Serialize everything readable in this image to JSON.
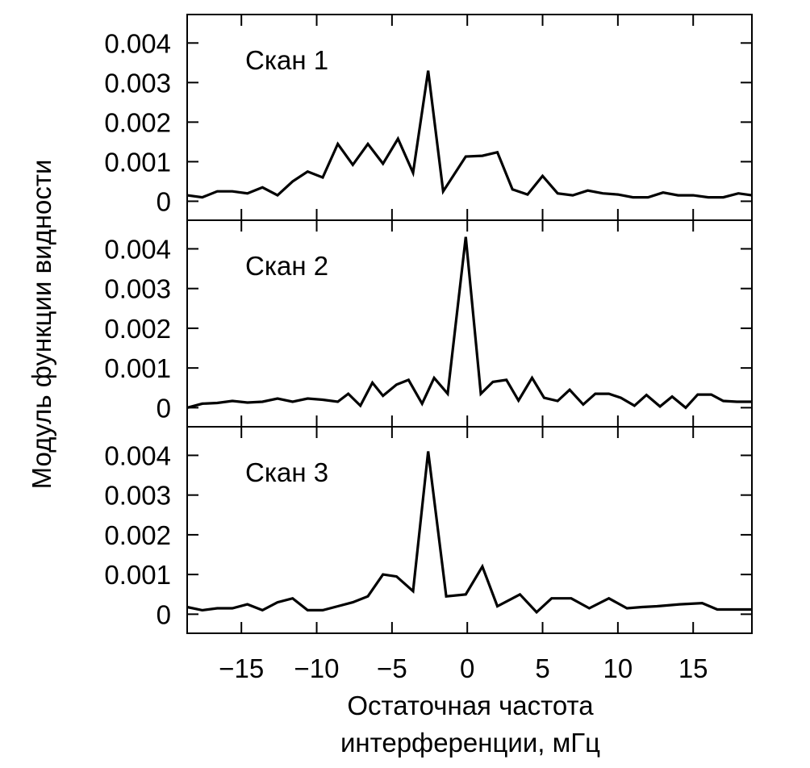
{
  "chart_data": [
    {
      "type": "line",
      "panel_label": "Скан 1",
      "xlabel": "Остаточная частота интерференции, мГц",
      "ylabel": "Модуль функции видности",
      "xlim": [
        -18.6,
        18.9
      ],
      "ylim": [
        -0.00048,
        0.00472
      ],
      "yticks": [
        0,
        0.001,
        0.002,
        0.003,
        0.004
      ],
      "ytick_labels": [
        "0",
        "0.001",
        "0.002",
        "0.003",
        "0.004"
      ],
      "x": [
        -18.6,
        -17.6,
        -16.6,
        -15.6,
        -14.6,
        -13.6,
        -12.6,
        -11.6,
        -10.6,
        -9.6,
        -8.6,
        -7.6,
        -6.6,
        -5.6,
        -4.6,
        -3.6,
        -2.6,
        -1.6,
        -0.1,
        1.0,
        2.0,
        3.0,
        4.0,
        5.0,
        6.0,
        7.0,
        8.0,
        9.0,
        10.0,
        11.0,
        12.0,
        13.0,
        14.0,
        15.0,
        16.0,
        17.0,
        18.0,
        18.9
      ],
      "y": [
        0.00015,
        0.0001,
        0.00025,
        0.00025,
        0.0002,
        0.00035,
        0.00015,
        0.0005,
        0.00075,
        0.0006,
        0.00145,
        0.00092,
        0.00145,
        0.00095,
        0.00158,
        0.00072,
        0.0033,
        0.00025,
        0.00113,
        0.00115,
        0.00124,
        0.0003,
        0.00017,
        0.00064,
        0.0002,
        0.00015,
        0.00027,
        0.0002,
        0.00017,
        0.0001,
        0.0001,
        0.00022,
        0.00015,
        0.00015,
        0.0001,
        0.0001,
        0.0002,
        0.00015
      ]
    },
    {
      "type": "line",
      "panel_label": "Скан 2",
      "xlim": [
        -18.6,
        18.9
      ],
      "ylim": [
        -0.00048,
        0.00472
      ],
      "yticks": [
        0,
        0.001,
        0.002,
        0.003,
        0.004
      ],
      "ytick_labels": [
        "0",
        "0.001",
        "0.002",
        "0.003",
        "0.004"
      ],
      "x": [
        -18.6,
        -17.6,
        -16.6,
        -15.6,
        -14.6,
        -13.6,
        -12.6,
        -11.6,
        -10.6,
        -9.6,
        -8.6,
        -7.9,
        -7.1,
        -6.3,
        -5.6,
        -4.7,
        -3.9,
        -3.0,
        -2.2,
        -1.3,
        -0.1,
        0.9,
        1.7,
        2.6,
        3.4,
        4.3,
        5.1,
        6.0,
        6.8,
        7.7,
        8.5,
        9.4,
        10.2,
        11.1,
        11.9,
        12.8,
        13.6,
        14.5,
        15.3,
        16.2,
        17.0,
        17.9,
        18.9
      ],
      "y": [
        0.0,
        0.0001,
        0.00012,
        0.00017,
        0.00013,
        0.00015,
        0.00023,
        0.00015,
        0.00023,
        0.0002,
        0.00015,
        0.00035,
        5e-05,
        0.00063,
        0.0003,
        0.00058,
        0.0007,
        0.0001,
        0.00075,
        0.00035,
        0.0043,
        0.00035,
        0.00065,
        0.0007,
        0.00018,
        0.00075,
        0.00025,
        0.00017,
        0.00045,
        8e-05,
        0.00035,
        0.00035,
        0.00025,
        5e-05,
        0.00032,
        3e-05,
        0.00028,
        0.0,
        0.00033,
        0.00033,
        0.00017,
        0.00015,
        0.00015
      ]
    },
    {
      "type": "line",
      "panel_label": "Скан 3",
      "xlim": [
        -18.6,
        18.9
      ],
      "ylim": [
        -0.00048,
        0.00472
      ],
      "yticks": [
        0,
        0.001,
        0.002,
        0.003,
        0.004
      ],
      "ytick_labels": [
        "0",
        "0.001",
        "0.002",
        "0.003",
        "0.004"
      ],
      "xticks": [
        -15,
        -10,
        -5,
        0,
        5,
        10,
        15
      ],
      "xtick_labels": [
        "−15",
        "−10",
        "−5",
        "0",
        "5",
        "10",
        "15"
      ],
      "x": [
        -18.6,
        -17.6,
        -16.6,
        -15.6,
        -14.6,
        -13.6,
        -12.6,
        -11.6,
        -10.6,
        -9.6,
        -8.6,
        -7.6,
        -6.6,
        -5.6,
        -4.7,
        -3.6,
        -2.6,
        -1.4,
        -0.1,
        1.0,
        2.0,
        3.5,
        4.6,
        5.6,
        6.9,
        8.1,
        9.4,
        10.6,
        11.6,
        12.6,
        14.1,
        15.6,
        16.6,
        17.9,
        18.9
      ],
      "y": [
        0.00018,
        0.0001,
        0.00015,
        0.00015,
        0.00025,
        0.0001,
        0.0003,
        0.0004,
        0.0001,
        0.0001,
        0.0002,
        0.0003,
        0.00045,
        0.001,
        0.00095,
        0.00058,
        0.0041,
        0.00045,
        0.0005,
        0.0012,
        0.0002,
        0.0005,
        5e-05,
        0.0004,
        0.0004,
        0.00015,
        0.0004,
        0.00015,
        0.00018,
        0.0002,
        0.00025,
        0.00028,
        0.00012,
        0.00012,
        0.00012
      ]
    }
  ],
  "colors": {
    "line": "#000000",
    "frame": "#000000",
    "background": "#ffffff"
  }
}
